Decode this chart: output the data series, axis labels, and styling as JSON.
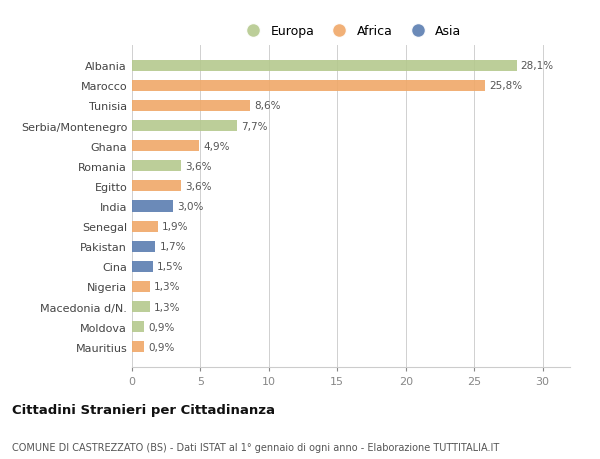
{
  "categories": [
    "Albania",
    "Marocco",
    "Tunisia",
    "Serbia/Montenegro",
    "Ghana",
    "Romania",
    "Egitto",
    "India",
    "Senegal",
    "Pakistan",
    "Cina",
    "Nigeria",
    "Macedonia d/N.",
    "Moldova",
    "Mauritius"
  ],
  "values": [
    28.1,
    25.8,
    8.6,
    7.7,
    4.9,
    3.6,
    3.6,
    3.0,
    1.9,
    1.7,
    1.5,
    1.3,
    1.3,
    0.9,
    0.9
  ],
  "labels": [
    "28,1%",
    "25,8%",
    "8,6%",
    "7,7%",
    "4,9%",
    "3,6%",
    "3,6%",
    "3,0%",
    "1,9%",
    "1,7%",
    "1,5%",
    "1,3%",
    "1,3%",
    "0,9%",
    "0,9%"
  ],
  "continents": [
    "Europa",
    "Africa",
    "Africa",
    "Europa",
    "Africa",
    "Europa",
    "Africa",
    "Asia",
    "Africa",
    "Asia",
    "Asia",
    "Africa",
    "Europa",
    "Europa",
    "Africa"
  ],
  "colors": {
    "Europa": "#b5c98e",
    "Africa": "#f0a868",
    "Asia": "#5b7db1"
  },
  "legend_entries": [
    "Europa",
    "Africa",
    "Asia"
  ],
  "xlim": [
    0,
    32
  ],
  "xticks": [
    0,
    5,
    10,
    15,
    20,
    25,
    30
  ],
  "title": "Cittadini Stranieri per Cittadinanza",
  "subtitle": "COMUNE DI CASTREZZATO (BS) - Dati ISTAT al 1° gennaio di ogni anno - Elaborazione TUTTITALIA.IT",
  "bg_color": "#ffffff",
  "plot_bg_color": "#ffffff"
}
